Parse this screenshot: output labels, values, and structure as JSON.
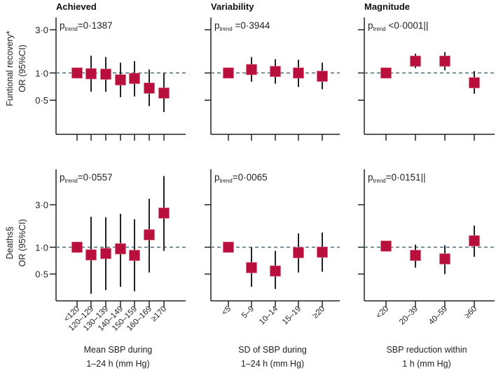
{
  "chart_data": {
    "type": "forest",
    "scale": "log",
    "colors": {
      "marker": "#b80f3c",
      "ci": "#222222",
      "reference_line": "#4d6e7e",
      "axis": "#222222"
    },
    "reference_value": 1.0,
    "rows": [
      {
        "ylabel": [
          "Funtional recovery*",
          "OR (95%CI)"
        ],
        "ylim": [
          0.21,
          4.1
        ],
        "yticks": [
          {
            "value": 0.5,
            "label": "0·5"
          },
          {
            "value": 1.0,
            "label": "1·0"
          },
          {
            "value": 3.0,
            "label": "3·0"
          }
        ]
      },
      {
        "ylabel": [
          "Deaths§",
          "OR (95%CI)"
        ],
        "ylim": [
          0.25,
          7.5
        ],
        "yticks": [
          {
            "value": 0.5,
            "label": "0·5"
          },
          {
            "value": 1.0,
            "label": "1·0"
          },
          {
            "value": 3.0,
            "label": "3·0"
          }
        ]
      }
    ],
    "columns": [
      {
        "title": "Achieved",
        "xlabel": [
          "Mean SBP during",
          "1–24 h (mm Hg)"
        ],
        "categories": [
          "<120",
          "120–129",
          "130–139",
          "140–149",
          "150–159",
          "160–169",
          "≥170"
        ]
      },
      {
        "title": "Variability",
        "xlabel": [
          "SD of SBP during",
          "1–24 h (mm Hg)"
        ],
        "categories": [
          "<5",
          "5–9",
          "10–14",
          "15–19",
          "≥20"
        ]
      },
      {
        "title": "Magnitude",
        "xlabel": [
          "SBP reduction within",
          "1 h (mm Hg)"
        ],
        "categories": [
          "<20",
          "20–39",
          "40–59",
          "≥60"
        ]
      }
    ],
    "panels": [
      {
        "row": 0,
        "col": 0,
        "p_prefix": "p",
        "p_sub": "trend",
        "p_value": "=0·1387",
        "points": [
          [
            1.0,
            null,
            null
          ],
          [
            0.98,
            0.62,
            1.55
          ],
          [
            0.97,
            0.62,
            1.5
          ],
          [
            0.84,
            0.54,
            1.3
          ],
          [
            0.87,
            0.55,
            1.35
          ],
          [
            0.68,
            0.43,
            1.09
          ],
          [
            0.6,
            0.37,
            1.0
          ]
        ]
      },
      {
        "row": 0,
        "col": 1,
        "p_prefix": "p",
        "p_sub": "trend",
        "p_value": " =0·3944",
        "points": [
          [
            1.0,
            null,
            null
          ],
          [
            1.09,
            0.8,
            1.5
          ],
          [
            1.04,
            0.76,
            1.42
          ],
          [
            1.0,
            0.7,
            1.4
          ],
          [
            0.92,
            0.66,
            1.3
          ]
        ]
      },
      {
        "row": 0,
        "col": 2,
        "p_prefix": "p",
        "p_sub": "trend",
        "p_value": " <0·0001||",
        "points": [
          [
            1.0,
            null,
            null
          ],
          [
            1.35,
            1.13,
            1.63
          ],
          [
            1.35,
            1.07,
            1.7
          ],
          [
            0.78,
            0.59,
            1.05
          ]
        ]
      },
      {
        "row": 1,
        "col": 0,
        "p_prefix": "p",
        "p_sub": "trend",
        "p_value": "=0·0557",
        "points": [
          [
            1.0,
            null,
            null
          ],
          [
            0.82,
            0.3,
            2.2
          ],
          [
            0.85,
            0.33,
            2.17
          ],
          [
            0.96,
            0.36,
            2.37
          ],
          [
            0.81,
            0.32,
            2.06
          ],
          [
            1.38,
            0.52,
            3.5
          ],
          [
            2.42,
            0.91,
            6.3
          ]
        ]
      },
      {
        "row": 1,
        "col": 1,
        "p_prefix": "p",
        "p_sub": "trend",
        "p_value": "=0·0065",
        "points": [
          [
            1.0,
            null,
            null
          ],
          [
            0.59,
            0.36,
            1.0
          ],
          [
            0.54,
            0.34,
            0.91
          ],
          [
            0.87,
            0.52,
            1.43
          ],
          [
            0.88,
            0.53,
            1.46
          ]
        ]
      },
      {
        "row": 1,
        "col": 2,
        "p_prefix": "p",
        "p_sub": "trend",
        "p_value": "=0·0151||",
        "points": [
          [
            1.03,
            null,
            null
          ],
          [
            0.81,
            0.59,
            1.07
          ],
          [
            0.74,
            0.5,
            1.05
          ],
          [
            1.18,
            0.78,
            1.75
          ]
        ]
      }
    ]
  }
}
